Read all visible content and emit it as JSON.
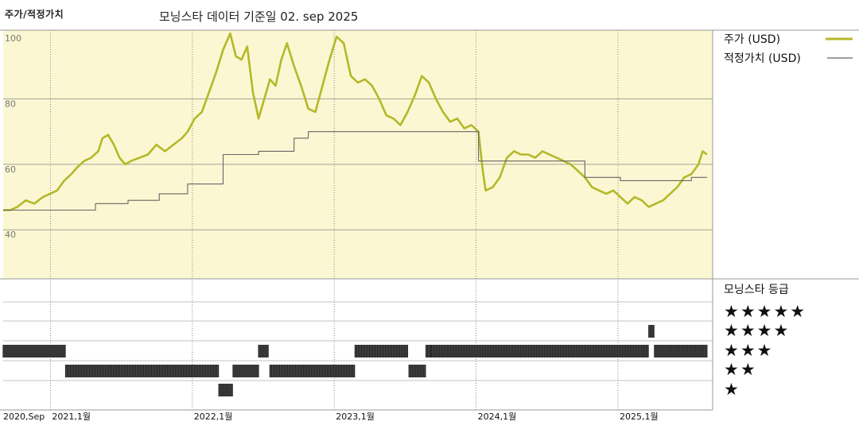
{
  "header": {
    "left_title": "주가/적정가치",
    "main_title": "모닝스타 데이터 기준일 02. sep 2025"
  },
  "colors": {
    "price": "#b3b829",
    "fair": "#666666",
    "panel_bg": "#fbf7d2",
    "rating_bar": "#222222"
  },
  "chart_data": {
    "type": "line",
    "y_ticks": [
      "100",
      "80",
      "60",
      "40"
    ],
    "ylim": [
      25,
      101
    ],
    "x_ticks": [
      "2020,Sep",
      "2021,1월",
      "2022,1월",
      "2023,1월",
      "2024,1월",
      "2025,1월"
    ],
    "x_tick_t": [
      0,
      0.333,
      1.333,
      2.333,
      3.333,
      4.333
    ],
    "x_range": [
      0,
      5.0
    ],
    "series": [
      {
        "name": "주가 (USD)",
        "key": "price",
        "points": [
          [
            0,
            46
          ],
          [
            0.05,
            46
          ],
          [
            0.1,
            47
          ],
          [
            0.16,
            49
          ],
          [
            0.22,
            48
          ],
          [
            0.28,
            50
          ],
          [
            0.33,
            51
          ],
          [
            0.38,
            52
          ],
          [
            0.43,
            55
          ],
          [
            0.48,
            57
          ],
          [
            0.52,
            59
          ],
          [
            0.57,
            61
          ],
          [
            0.62,
            62
          ],
          [
            0.67,
            64
          ],
          [
            0.7,
            68
          ],
          [
            0.74,
            69
          ],
          [
            0.78,
            66
          ],
          [
            0.82,
            62
          ],
          [
            0.86,
            60
          ],
          [
            0.9,
            61
          ],
          [
            0.96,
            62
          ],
          [
            1.02,
            63
          ],
          [
            1.08,
            66
          ],
          [
            1.14,
            64
          ],
          [
            1.2,
            66
          ],
          [
            1.26,
            68
          ],
          [
            1.3,
            70
          ],
          [
            1.35,
            74
          ],
          [
            1.4,
            76
          ],
          [
            1.45,
            82
          ],
          [
            1.5,
            88
          ],
          [
            1.55,
            95
          ],
          [
            1.6,
            100
          ],
          [
            1.64,
            93
          ],
          [
            1.68,
            92
          ],
          [
            1.72,
            96
          ],
          [
            1.76,
            82
          ],
          [
            1.8,
            74
          ],
          [
            1.84,
            80
          ],
          [
            1.88,
            86
          ],
          [
            1.92,
            84
          ],
          [
            1.96,
            92
          ],
          [
            2.0,
            97
          ],
          [
            2.05,
            90
          ],
          [
            2.1,
            84
          ],
          [
            2.15,
            77
          ],
          [
            2.2,
            76
          ],
          [
            2.25,
            84
          ],
          [
            2.3,
            92
          ],
          [
            2.35,
            99
          ],
          [
            2.4,
            97
          ],
          [
            2.45,
            87
          ],
          [
            2.5,
            85
          ],
          [
            2.55,
            86
          ],
          [
            2.6,
            84
          ],
          [
            2.65,
            80
          ],
          [
            2.7,
            75
          ],
          [
            2.75,
            74
          ],
          [
            2.8,
            72
          ],
          [
            2.85,
            76
          ],
          [
            2.9,
            81
          ],
          [
            2.95,
            87
          ],
          [
            3.0,
            85
          ],
          [
            3.05,
            80
          ],
          [
            3.1,
            76
          ],
          [
            3.15,
            73
          ],
          [
            3.2,
            74
          ],
          [
            3.25,
            71
          ],
          [
            3.3,
            72
          ],
          [
            3.35,
            70
          ],
          [
            3.38,
            58
          ],
          [
            3.4,
            52
          ],
          [
            3.45,
            53
          ],
          [
            3.5,
            56
          ],
          [
            3.55,
            62
          ],
          [
            3.6,
            64
          ],
          [
            3.65,
            63
          ],
          [
            3.7,
            63
          ],
          [
            3.75,
            62
          ],
          [
            3.8,
            64
          ],
          [
            3.85,
            63
          ],
          [
            3.9,
            62
          ],
          [
            3.95,
            61
          ],
          [
            4.0,
            60
          ],
          [
            4.05,
            58
          ],
          [
            4.1,
            56
          ],
          [
            4.15,
            53
          ],
          [
            4.2,
            52
          ],
          [
            4.25,
            51
          ],
          [
            4.3,
            52
          ],
          [
            4.35,
            50
          ],
          [
            4.4,
            48
          ],
          [
            4.45,
            50
          ],
          [
            4.5,
            49
          ],
          [
            4.55,
            47
          ],
          [
            4.6,
            48
          ],
          [
            4.65,
            49
          ],
          [
            4.7,
            51
          ],
          [
            4.75,
            53
          ],
          [
            4.8,
            56
          ],
          [
            4.85,
            57
          ],
          [
            4.9,
            60
          ],
          [
            4.93,
            64
          ],
          [
            4.96,
            63
          ]
        ]
      },
      {
        "name": "적정가치 (USD)",
        "key": "fair",
        "points": [
          [
            0,
            46
          ],
          [
            0.65,
            46
          ],
          [
            0.65,
            48
          ],
          [
            0.88,
            48
          ],
          [
            0.88,
            49
          ],
          [
            1.1,
            49
          ],
          [
            1.1,
            51
          ],
          [
            1.3,
            51
          ],
          [
            1.3,
            54
          ],
          [
            1.55,
            54
          ],
          [
            1.55,
            63
          ],
          [
            1.8,
            63
          ],
          [
            1.8,
            64
          ],
          [
            2.05,
            64
          ],
          [
            2.05,
            68
          ],
          [
            2.15,
            68
          ],
          [
            2.15,
            70
          ],
          [
            3.35,
            70
          ],
          [
            3.35,
            61
          ],
          [
            4.1,
            61
          ],
          [
            4.1,
            56
          ],
          [
            4.35,
            56
          ],
          [
            4.35,
            55
          ],
          [
            4.85,
            55
          ],
          [
            4.85,
            56
          ],
          [
            4.96,
            56
          ]
        ]
      }
    ],
    "ratings": {
      "title": "모닝스타 등급",
      "stars": [
        "★★★★★",
        "★★★★",
        "★★★",
        "★★",
        "★"
      ],
      "segments": [
        {
          "start": 0.0,
          "end": 0.44,
          "rating": 3
        },
        {
          "start": 0.44,
          "end": 1.52,
          "rating": 2
        },
        {
          "start": 1.52,
          "end": 1.62,
          "rating": 1
        },
        {
          "start": 1.62,
          "end": 1.8,
          "rating": 2
        },
        {
          "start": 1.8,
          "end": 1.87,
          "rating": 3
        },
        {
          "start": 1.88,
          "end": 2.48,
          "rating": 2
        },
        {
          "start": 2.48,
          "end": 2.85,
          "rating": 3
        },
        {
          "start": 2.86,
          "end": 2.98,
          "rating": 2
        },
        {
          "start": 2.98,
          "end": 3.02,
          "rating": 3
        },
        {
          "start": 3.02,
          "end": 4.55,
          "rating": 3
        },
        {
          "start": 4.55,
          "end": 4.59,
          "rating": 4
        },
        {
          "start": 4.59,
          "end": 4.96,
          "rating": 3
        }
      ]
    }
  }
}
